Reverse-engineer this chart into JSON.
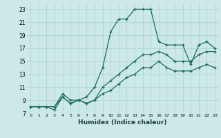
{
  "xlabel": "Humidex (Indice chaleur)",
  "bg_color": "#cce8e8",
  "grid_color": "#a8d0d0",
  "line_color": "#1a6b5a",
  "xlim": [
    -0.5,
    23.5
  ],
  "ylim": [
    7,
    24
  ],
  "xticks": [
    0,
    1,
    2,
    3,
    4,
    5,
    6,
    7,
    8,
    9,
    10,
    11,
    12,
    13,
    14,
    15,
    16,
    17,
    18,
    19,
    20,
    21,
    22,
    23
  ],
  "yticks": [
    7,
    9,
    11,
    13,
    15,
    17,
    19,
    21,
    23
  ],
  "series": [
    {
      "x": [
        0,
        1,
        2,
        3,
        4,
        5,
        6,
        7,
        8,
        9,
        10,
        11,
        12,
        13,
        14,
        15,
        16,
        17,
        18,
        19,
        20,
        21,
        22,
        23
      ],
      "y": [
        8.0,
        8.0,
        8.0,
        8.0,
        10.0,
        9.0,
        9.0,
        9.5,
        11.0,
        14.0,
        19.5,
        21.5,
        21.5,
        23.0,
        23.0,
        23.0,
        18.0,
        17.5,
        17.5,
        17.5,
        14.5,
        17.5,
        18.0,
        17.0
      ]
    },
    {
      "x": [
        0,
        1,
        2,
        3,
        4,
        5,
        6,
        7,
        8,
        9,
        10,
        11,
        12,
        13,
        14,
        15,
        16,
        17,
        18,
        19,
        20,
        21,
        22,
        23
      ],
      "y": [
        8.0,
        8.0,
        8.0,
        7.5,
        9.5,
        8.5,
        9.0,
        8.5,
        9.0,
        11.0,
        12.0,
        13.0,
        14.0,
        15.0,
        16.0,
        16.0,
        16.5,
        16.0,
        15.0,
        15.0,
        15.0,
        16.0,
        16.5,
        16.5
      ]
    },
    {
      "x": [
        0,
        1,
        2,
        3,
        4,
        5,
        6,
        7,
        8,
        9,
        10,
        11,
        12,
        13,
        14,
        15,
        16,
        17,
        18,
        19,
        20,
        21,
        22,
        23
      ],
      "y": [
        8.0,
        8.0,
        8.0,
        8.0,
        9.5,
        8.5,
        9.0,
        8.5,
        9.0,
        10.0,
        10.5,
        11.5,
        12.5,
        13.0,
        14.0,
        14.0,
        15.0,
        14.0,
        13.5,
        13.5,
        13.5,
        14.0,
        14.5,
        14.0
      ]
    }
  ]
}
